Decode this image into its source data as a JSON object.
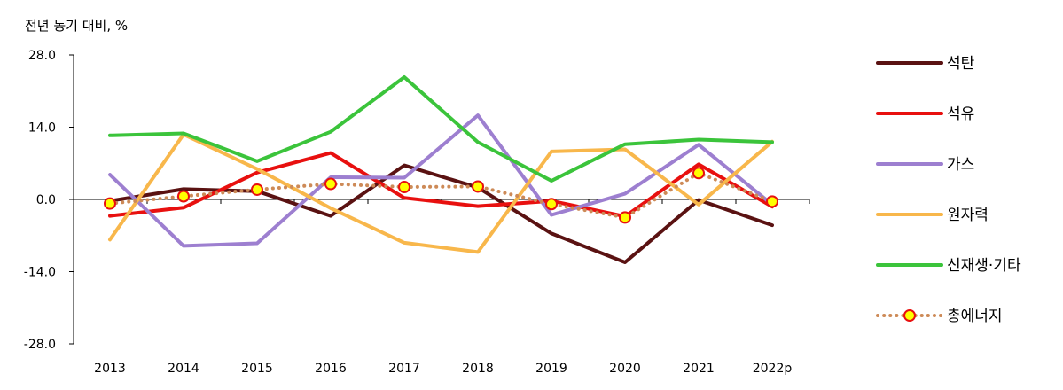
{
  "chart_data": {
    "type": "line",
    "title": "전년 동기 대비, %",
    "xlabel": "",
    "ylabel": "",
    "categories": [
      "2013",
      "2014",
      "2015",
      "2016",
      "2017",
      "2018",
      "2019",
      "2020",
      "2021",
      "2022p"
    ],
    "ylim": [
      -28,
      28
    ],
    "yticks": [
      28,
      14,
      0,
      -14,
      -28
    ],
    "ytick_labels": [
      "28.0",
      "14.0",
      "0.0",
      "-14.0",
      "-28.0"
    ],
    "legend_position": "right",
    "series": [
      {
        "name": "석탄",
        "color": "#5a1212",
        "style": "solid",
        "values": [
          -0.3,
          2.0,
          1.6,
          -3.2,
          6.6,
          2.3,
          -6.6,
          -12.2,
          -0.1,
          -5.0
        ]
      },
      {
        "name": "석유",
        "color": "#e8100f",
        "style": "solid",
        "values": [
          -3.2,
          -1.6,
          5.2,
          9.0,
          0.3,
          -1.3,
          -0.3,
          -3.3,
          6.8,
          -1.4
        ]
      },
      {
        "name": "가스",
        "color": "#9d7fd0",
        "style": "solid",
        "values": [
          4.8,
          -9.0,
          -8.5,
          4.3,
          4.2,
          16.3,
          -3.0,
          1.1,
          10.6,
          -1.0
        ]
      },
      {
        "name": "원자력",
        "color": "#f8b74b",
        "style": "solid",
        "values": [
          -7.8,
          12.6,
          5.9,
          -1.7,
          -8.4,
          -10.2,
          9.3,
          9.7,
          -1.0,
          11.2
        ]
      },
      {
        "name": "신재생·기타",
        "color": "#3bc43b",
        "style": "solid",
        "values": [
          12.4,
          12.8,
          7.4,
          13.1,
          23.7,
          11.1,
          3.6,
          10.7,
          11.6,
          11.1
        ]
      },
      {
        "name": "총에너지",
        "color": "#cd8a57",
        "style": "dotted",
        "marker": "circle",
        "marker_fill": "#ffff00",
        "marker_edge": "#e8100f",
        "values": [
          -0.8,
          0.6,
          1.9,
          3.0,
          2.4,
          2.5,
          -0.9,
          -3.5,
          5.1,
          -0.4
        ]
      }
    ]
  }
}
